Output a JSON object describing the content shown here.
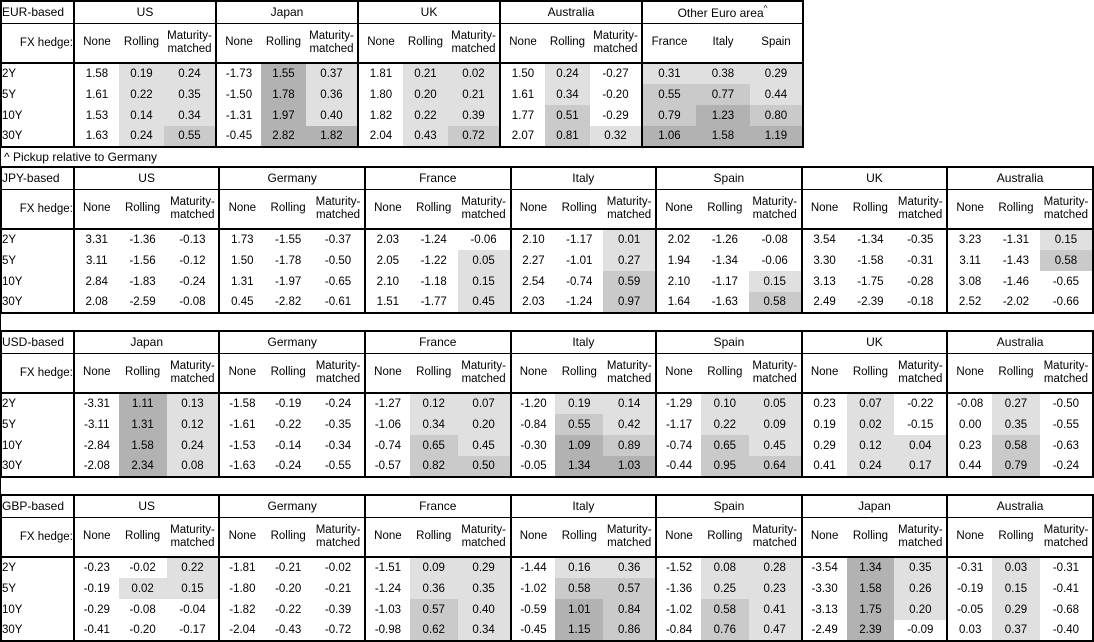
{
  "note": "^ Pickup relative to Germany",
  "fx_hedge_label": "FX hedge:",
  "maturities": [
    "2Y",
    "5Y",
    "10Y",
    "30Y"
  ],
  "colors": {
    "background": "#ffffff",
    "border": "#000000",
    "text": "#000000",
    "cell_shade_low": "#e0e0e0",
    "cell_shade_mid": "#cacaca",
    "cell_shade_high": "#b2b2b2"
  },
  "shading_rule": {
    "description": "Cells shaded by value; 'None' columns never shaded (Other Euro area columns always shaded)",
    "white": "value < 0",
    "low": "0 <= value < 0.5",
    "mid": "0.5 <= value < 1.0",
    "high": "value >= 1.0"
  },
  "tables": [
    {
      "label": "EUR-based",
      "groups": [
        {
          "name": "US",
          "columns": [
            "None",
            "Rolling",
            "Maturity-matched"
          ],
          "heatmap_all": false,
          "rows": [
            [
              "1.58",
              "0.19",
              "0.24"
            ],
            [
              "1.61",
              "0.22",
              "0.35"
            ],
            [
              "1.53",
              "0.14",
              "0.34"
            ],
            [
              "1.63",
              "0.24",
              "0.55"
            ]
          ]
        },
        {
          "name": "Japan",
          "columns": [
            "None",
            "Rolling",
            "Maturity-matched"
          ],
          "heatmap_all": false,
          "rows": [
            [
              "-1.73",
              "1.55",
              "0.37"
            ],
            [
              "-1.50",
              "1.78",
              "0.36"
            ],
            [
              "-1.31",
              "1.97",
              "0.40"
            ],
            [
              "-0.45",
              "2.82",
              "1.82"
            ]
          ]
        },
        {
          "name": "UK",
          "columns": [
            "None",
            "Rolling",
            "Maturity-matched"
          ],
          "heatmap_all": false,
          "rows": [
            [
              "1.81",
              "0.21",
              "0.02"
            ],
            [
              "1.80",
              "0.20",
              "0.21"
            ],
            [
              "1.82",
              "0.22",
              "0.39"
            ],
            [
              "2.04",
              "0.43",
              "0.72"
            ]
          ]
        },
        {
          "name": "Australia",
          "columns": [
            "None",
            "Rolling",
            "Maturity-matched"
          ],
          "heatmap_all": false,
          "rows": [
            [
              "1.50",
              "0.24",
              "-0.27"
            ],
            [
              "1.61",
              "0.34",
              "-0.20"
            ],
            [
              "1.77",
              "0.51",
              "-0.29"
            ],
            [
              "2.07",
              "0.81",
              "0.32"
            ]
          ]
        },
        {
          "name": "Other Euro area",
          "superscript": "^",
          "columns": [
            "France",
            "Italy",
            "Spain"
          ],
          "heatmap_all": true,
          "rows": [
            [
              "0.31",
              "0.38",
              "0.29"
            ],
            [
              "0.55",
              "0.77",
              "0.44"
            ],
            [
              "0.79",
              "1.23",
              "0.80"
            ],
            [
              "1.06",
              "1.58",
              "1.19"
            ]
          ]
        }
      ]
    },
    {
      "label": "JPY-based",
      "groups": [
        {
          "name": "US",
          "columns": [
            "None",
            "Rolling",
            "Maturity-matched"
          ],
          "heatmap_all": false,
          "rows": [
            [
              "3.31",
              "-1.36",
              "-0.13"
            ],
            [
              "3.11",
              "-1.56",
              "-0.12"
            ],
            [
              "2.84",
              "-1.83",
              "-0.24"
            ],
            [
              "2.08",
              "-2.59",
              "-0.08"
            ]
          ]
        },
        {
          "name": "Germany",
          "columns": [
            "None",
            "Rolling",
            "Maturity-matched"
          ],
          "heatmap_all": false,
          "rows": [
            [
              "1.73",
              "-1.55",
              "-0.37"
            ],
            [
              "1.50",
              "-1.78",
              "-0.50"
            ],
            [
              "1.31",
              "-1.97",
              "-0.65"
            ],
            [
              "0.45",
              "-2.82",
              "-0.61"
            ]
          ]
        },
        {
          "name": "France",
          "columns": [
            "None",
            "Rolling",
            "Maturity-matched"
          ],
          "heatmap_all": false,
          "rows": [
            [
              "2.03",
              "-1.24",
              "-0.06"
            ],
            [
              "2.05",
              "-1.22",
              "0.05"
            ],
            [
              "2.10",
              "-1.18",
              "0.15"
            ],
            [
              "1.51",
              "-1.77",
              "0.45"
            ]
          ]
        },
        {
          "name": "Italy",
          "columns": [
            "None",
            "Rolling",
            "Maturity-matched"
          ],
          "heatmap_all": false,
          "rows": [
            [
              "2.10",
              "-1.17",
              "0.01"
            ],
            [
              "2.27",
              "-1.01",
              "0.27"
            ],
            [
              "2.54",
              "-0.74",
              "0.59"
            ],
            [
              "2.03",
              "-1.24",
              "0.97"
            ]
          ]
        },
        {
          "name": "Spain",
          "columns": [
            "None",
            "Rolling",
            "Maturity-matched"
          ],
          "heatmap_all": false,
          "rows": [
            [
              "2.02",
              "-1.26",
              "-0.08"
            ],
            [
              "1.94",
              "-1.34",
              "-0.06"
            ],
            [
              "2.10",
              "-1.17",
              "0.15"
            ],
            [
              "1.64",
              "-1.63",
              "0.58"
            ]
          ]
        },
        {
          "name": "UK",
          "columns": [
            "None",
            "Rolling",
            "Maturity-matched"
          ],
          "heatmap_all": false,
          "rows": [
            [
              "3.54",
              "-1.34",
              "-0.35"
            ],
            [
              "3.30",
              "-1.58",
              "-0.31"
            ],
            [
              "3.13",
              "-1.75",
              "-0.28"
            ],
            [
              "2.49",
              "-2.39",
              "-0.18"
            ]
          ]
        },
        {
          "name": "Australia",
          "columns": [
            "None",
            "Rolling",
            "Maturity-matched"
          ],
          "heatmap_all": false,
          "rows": [
            [
              "3.23",
              "-1.31",
              "0.15"
            ],
            [
              "3.11",
              "-1.43",
              "0.58"
            ],
            [
              "3.08",
              "-1.46",
              "-0.65"
            ],
            [
              "2.52",
              "-2.02",
              "-0.66"
            ]
          ]
        }
      ]
    },
    {
      "label": "USD-based",
      "groups": [
        {
          "name": "Japan",
          "columns": [
            "None",
            "Rolling",
            "Maturity-matched"
          ],
          "heatmap_all": false,
          "rows": [
            [
              "-3.31",
              "1.11",
              "0.13"
            ],
            [
              "-3.11",
              "1.31",
              "0.12"
            ],
            [
              "-2.84",
              "1.58",
              "0.24"
            ],
            [
              "-2.08",
              "2.34",
              "0.08"
            ]
          ]
        },
        {
          "name": "Germany",
          "columns": [
            "None",
            "Rolling",
            "Maturity-matched"
          ],
          "heatmap_all": false,
          "rows": [
            [
              "-1.58",
              "-0.19",
              "-0.24"
            ],
            [
              "-1.61",
              "-0.22",
              "-0.35"
            ],
            [
              "-1.53",
              "-0.14",
              "-0.34"
            ],
            [
              "-1.63",
              "-0.24",
              "-0.55"
            ]
          ]
        },
        {
          "name": "France",
          "columns": [
            "None",
            "Rolling",
            "Maturity-matched"
          ],
          "heatmap_all": false,
          "rows": [
            [
              "-1.27",
              "0.12",
              "0.07"
            ],
            [
              "-1.06",
              "0.34",
              "0.20"
            ],
            [
              "-0.74",
              "0.65",
              "0.45"
            ],
            [
              "-0.57",
              "0.82",
              "0.50"
            ]
          ]
        },
        {
          "name": "Italy",
          "columns": [
            "None",
            "Rolling",
            "Maturity-matched"
          ],
          "heatmap_all": false,
          "rows": [
            [
              "-1.20",
              "0.19",
              "0.14"
            ],
            [
              "-0.84",
              "0.55",
              "0.42"
            ],
            [
              "-0.30",
              "1.09",
              "0.89"
            ],
            [
              "-0.05",
              "1.34",
              "1.03"
            ]
          ]
        },
        {
          "name": "Spain",
          "columns": [
            "None",
            "Rolling",
            "Maturity-matched"
          ],
          "heatmap_all": false,
          "rows": [
            [
              "-1.29",
              "0.10",
              "0.05"
            ],
            [
              "-1.17",
              "0.22",
              "0.09"
            ],
            [
              "-0.74",
              "0.65",
              "0.45"
            ],
            [
              "-0.44",
              "0.95",
              "0.64"
            ]
          ]
        },
        {
          "name": "UK",
          "columns": [
            "None",
            "Rolling",
            "Maturity-matched"
          ],
          "heatmap_all": false,
          "rows": [
            [
              "0.23",
              "0.07",
              "-0.22"
            ],
            [
              "0.19",
              "0.02",
              "-0.15"
            ],
            [
              "0.29",
              "0.12",
              "0.04"
            ],
            [
              "0.41",
              "0.24",
              "0.17"
            ]
          ]
        },
        {
          "name": "Australia",
          "columns": [
            "None",
            "Rolling",
            "Maturity-matched"
          ],
          "heatmap_all": false,
          "rows": [
            [
              "-0.08",
              "0.27",
              "-0.50"
            ],
            [
              "0.00",
              "0.35",
              "-0.55"
            ],
            [
              "0.23",
              "0.58",
              "-0.63"
            ],
            [
              "0.44",
              "0.79",
              "-0.24"
            ]
          ]
        }
      ]
    },
    {
      "label": "GBP-based",
      "groups": [
        {
          "name": "US",
          "columns": [
            "None",
            "Rolling",
            "Maturity-matched"
          ],
          "heatmap_all": false,
          "rows": [
            [
              "-0.23",
              "-0.02",
              "0.22"
            ],
            [
              "-0.19",
              "0.02",
              "0.15"
            ],
            [
              "-0.29",
              "-0.08",
              "-0.04"
            ],
            [
              "-0.41",
              "-0.20",
              "-0.17"
            ]
          ]
        },
        {
          "name": "Germany",
          "columns": [
            "None",
            "Rolling",
            "Maturity-matched"
          ],
          "heatmap_all": false,
          "rows": [
            [
              "-1.81",
              "-0.21",
              "-0.02"
            ],
            [
              "-1.80",
              "-0.20",
              "-0.21"
            ],
            [
              "-1.82",
              "-0.22",
              "-0.39"
            ],
            [
              "-2.04",
              "-0.43",
              "-0.72"
            ]
          ]
        },
        {
          "name": "France",
          "columns": [
            "None",
            "Rolling",
            "Maturity-matched"
          ],
          "heatmap_all": false,
          "rows": [
            [
              "-1.51",
              "0.09",
              "0.29"
            ],
            [
              "-1.24",
              "0.36",
              "0.35"
            ],
            [
              "-1.03",
              "0.57",
              "0.40"
            ],
            [
              "-0.98",
              "0.62",
              "0.34"
            ]
          ]
        },
        {
          "name": "Italy",
          "columns": [
            "None",
            "Rolling",
            "Maturity-matched"
          ],
          "heatmap_all": false,
          "rows": [
            [
              "-1.44",
              "0.16",
              "0.36"
            ],
            [
              "-1.02",
              "0.58",
              "0.57"
            ],
            [
              "-0.59",
              "1.01",
              "0.84"
            ],
            [
              "-0.45",
              "1.15",
              "0.86"
            ]
          ]
        },
        {
          "name": "Spain",
          "columns": [
            "None",
            "Rolling",
            "Maturity-matched"
          ],
          "heatmap_all": false,
          "rows": [
            [
              "-1.52",
              "0.08",
              "0.28"
            ],
            [
              "-1.36",
              "0.25",
              "0.23"
            ],
            [
              "-1.02",
              "0.58",
              "0.41"
            ],
            [
              "-0.84",
              "0.76",
              "0.47"
            ]
          ]
        },
        {
          "name": "Japan",
          "columns": [
            "None",
            "Rolling",
            "Maturity-matched"
          ],
          "heatmap_all": false,
          "rows": [
            [
              "-3.54",
              "1.34",
              "0.35"
            ],
            [
              "-3.30",
              "1.58",
              "0.26"
            ],
            [
              "-3.13",
              "1.75",
              "0.20"
            ],
            [
              "-2.49",
              "2.39",
              "-0.09"
            ]
          ]
        },
        {
          "name": "Australia",
          "columns": [
            "None",
            "Rolling",
            "Maturity-matched"
          ],
          "heatmap_all": false,
          "rows": [
            [
              "-0.31",
              "0.03",
              "-0.31"
            ],
            [
              "-0.19",
              "0.15",
              "-0.41"
            ],
            [
              "-0.05",
              "0.29",
              "-0.68"
            ],
            [
              "0.03",
              "0.37",
              "-0.40"
            ]
          ]
        }
      ]
    }
  ]
}
